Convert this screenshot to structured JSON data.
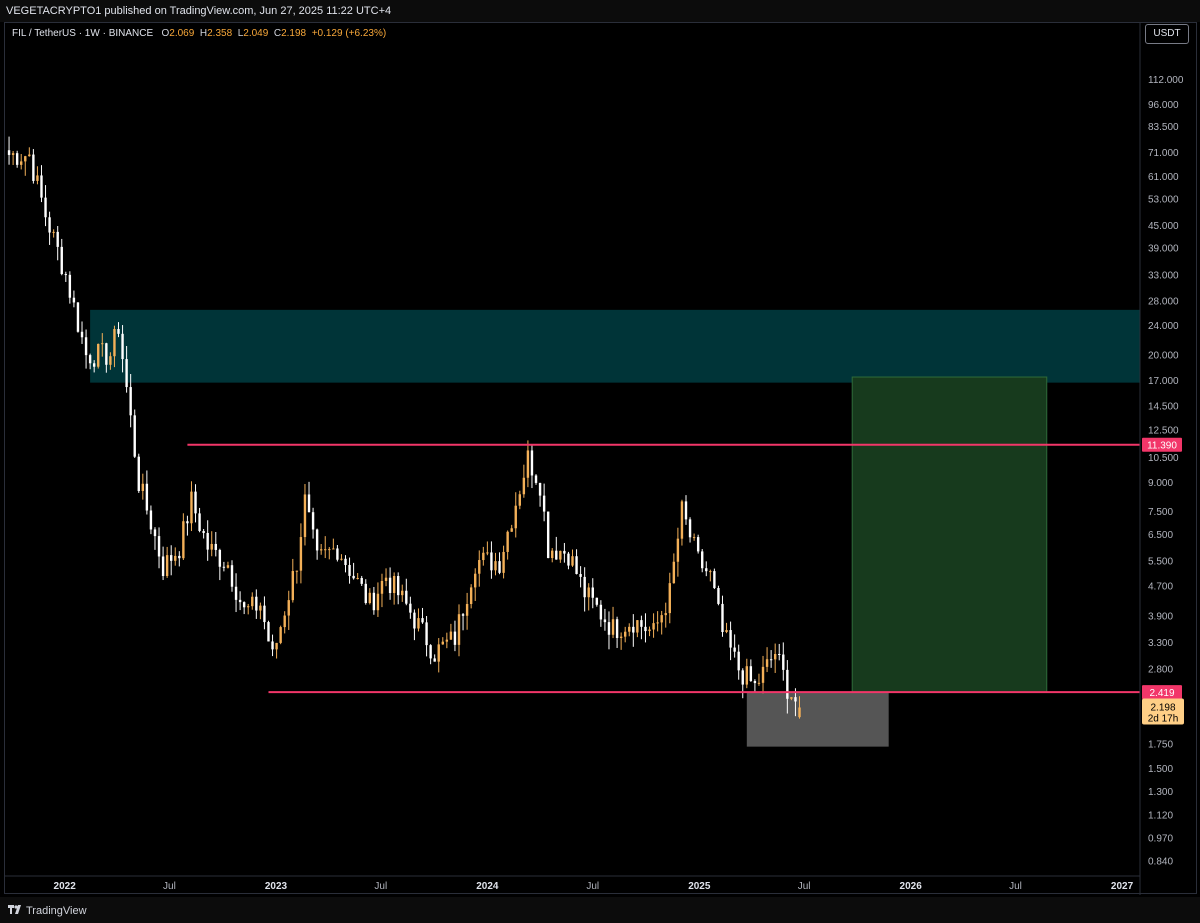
{
  "header": {
    "published": "VEGETACRYPTO1 published on TradingView.com, Jun 27, 2025 11:22 UTC+4"
  },
  "legend": {
    "symbol": "FIL / TetherUS · 1W · BINANCE",
    "open_label": "O",
    "open": "2.069",
    "high_label": "H",
    "high": "2.358",
    "low_label": "L",
    "low": "2.049",
    "close_label": "C",
    "close": "2.198",
    "change": "+0.129 (+6.23%)"
  },
  "currency": "USDT",
  "footer": {
    "brand": "TradingView"
  },
  "colors": {
    "up": "#f3b058",
    "down": "#ffffff",
    "level": "#f23669",
    "supply_zone": "#003438",
    "target_zone": "#173a1d",
    "stop_zone": "#555555",
    "price_tag": "#ffcf86"
  },
  "chart_data": {
    "type": "candlestick",
    "title": "",
    "xlabel": "",
    "ylabel": "",
    "log_scale": true,
    "ylim": [
      0.77,
      140
    ],
    "xlim": [
      "2021-09-20",
      "2027-02-01"
    ],
    "grid": false,
    "y_ticks": [
      "0.840",
      "0.970",
      "1.120",
      "1.300",
      "1.500",
      "1.750",
      "2.800",
      "3.300",
      "3.900",
      "4.700",
      "5.500",
      "6.500",
      "7.500",
      "9.000",
      "10.500",
      "12.500",
      "14.500",
      "17.000",
      "20.000",
      "24.000",
      "28.000",
      "33.000",
      "39.000",
      "45.000",
      "53.000",
      "61.000",
      "71.000",
      "83.500",
      "96.000",
      "112.000"
    ],
    "x_ticks": [
      {
        "label": "2022",
        "date": "2022-01-01",
        "bold": true
      },
      {
        "label": "Jul",
        "date": "2022-07-01",
        "bold": false
      },
      {
        "label": "2023",
        "date": "2023-01-01",
        "bold": true
      },
      {
        "label": "Jul",
        "date": "2023-07-01",
        "bold": false
      },
      {
        "label": "2024",
        "date": "2024-01-01",
        "bold": true
      },
      {
        "label": "Jul",
        "date": "2024-07-01",
        "bold": false
      },
      {
        "label": "2025",
        "date": "2025-01-01",
        "bold": true
      },
      {
        "label": "Jul",
        "date": "2025-07-01",
        "bold": false
      },
      {
        "label": "2026",
        "date": "2026-01-01",
        "bold": true
      },
      {
        "label": "Jul",
        "date": "2026-07-01",
        "bold": false
      },
      {
        "label": "2027",
        "date": "2027-01-01",
        "bold": true
      }
    ],
    "anchors": [
      [
        "2021-09-27",
        70
      ],
      [
        "2021-11-01",
        70
      ],
      [
        "2021-11-29",
        48
      ],
      [
        "2022-01-03",
        33
      ],
      [
        "2022-02-07",
        20
      ],
      [
        "2022-03-21",
        20
      ],
      [
        "2022-04-04",
        24
      ],
      [
        "2022-05-09",
        9
      ],
      [
        "2022-05-30",
        7
      ],
      [
        "2022-06-20",
        5.3
      ],
      [
        "2022-07-18",
        6.0
      ],
      [
        "2022-08-08",
        8.0
      ],
      [
        "2022-09-05",
        6.0
      ],
      [
        "2022-10-10",
        5.4
      ],
      [
        "2022-11-07",
        4.0
      ],
      [
        "2022-12-05",
        4.2
      ],
      [
        "2022-12-26",
        3.0
      ],
      [
        "2023-02-06",
        5.5
      ],
      [
        "2023-02-20",
        8.0
      ],
      [
        "2023-03-13",
        5.5
      ],
      [
        "2023-04-17",
        6.0
      ],
      [
        "2023-06-12",
        4.2
      ],
      [
        "2023-07-10",
        5.0
      ],
      [
        "2023-08-21",
        4.0
      ],
      [
        "2023-10-02",
        3.1
      ],
      [
        "2023-11-06",
        3.4
      ],
      [
        "2023-12-11",
        5.5
      ],
      [
        "2024-01-22",
        5.5
      ],
      [
        "2024-03-11",
        10.5
      ],
      [
        "2024-04-01",
        9.0
      ],
      [
        "2024-04-15",
        6.0
      ],
      [
        "2024-05-20",
        5.8
      ],
      [
        "2024-06-17",
        4.5
      ],
      [
        "2024-08-05",
        3.6
      ],
      [
        "2024-09-09",
        3.8
      ],
      [
        "2024-10-14",
        3.5
      ],
      [
        "2024-11-11",
        4.5
      ],
      [
        "2024-12-02",
        7.5
      ],
      [
        "2024-12-30",
        5.5
      ],
      [
        "2025-01-20",
        5.0
      ],
      [
        "2025-02-10",
        3.5
      ],
      [
        "2025-03-10",
        2.8
      ],
      [
        "2025-04-07",
        2.5
      ],
      [
        "2025-05-12",
        3.1
      ],
      [
        "2025-06-02",
        2.5
      ],
      [
        "2025-06-23",
        2.198
      ]
    ],
    "last_candle": {
      "date": "2025-06-23",
      "open": 2.069,
      "high": 2.358,
      "low": 2.049,
      "close": 2.198
    },
    "levels": [
      {
        "label": "11.390",
        "value": 11.39,
        "from": "2022-08-01",
        "to": "2027-02-01"
      },
      {
        "label": "2.419",
        "value": 2.419,
        "from": "2022-12-19",
        "to": "2027-02-01"
      }
    ],
    "zones": [
      {
        "name": "supply",
        "from": "2022-02-14",
        "to": "2027-02-01",
        "low": 16.8,
        "high": 26.5,
        "color": "#003438"
      },
      {
        "name": "target",
        "from": "2025-09-22",
        "to": "2026-08-24",
        "low": 2.419,
        "high": 17.4,
        "color": "#173a1d"
      },
      {
        "name": "stop",
        "from": "2025-03-24",
        "to": "2025-11-24",
        "low": 1.72,
        "high": 2.419,
        "color": "#555555"
      }
    ],
    "last_price": {
      "value": "2.198",
      "countdown": "2d 17h"
    }
  }
}
